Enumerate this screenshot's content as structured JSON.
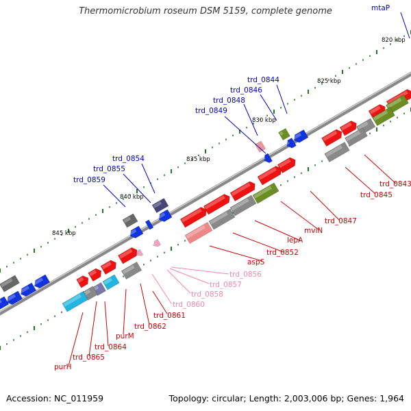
{
  "title": "Thermomicrobium roseum DSM 5159, complete genome",
  "footer": {
    "accession": "Accession: NC_011959",
    "summary": "Topology: circular; Length: 2,003,006 bp; Genes: 1,964"
  },
  "kbp_labels": [
    "820 kbp",
    "825 kbp",
    "830 kbp",
    "835 kbp",
    "840 kbp",
    "845 kbp"
  ],
  "gene_labels": {
    "blue": [
      "mtaP",
      "trd_0844",
      "trd_0846",
      "trd_0848",
      "trd_0849",
      "trd_0854",
      "trd_0855",
      "trd_0859"
    ],
    "red": [
      "trd_0843",
      "trd_0845",
      "trd_0847",
      "mviN",
      "lepA",
      "trd_0852",
      "aspS",
      "trd_0861",
      "trd_0862",
      "purM",
      "trd_0864",
      "trd_0865",
      "purH"
    ],
    "pink": [
      "trd_0856",
      "trd_0857",
      "trd_0858",
      "trd_0860"
    ]
  },
  "colors": {
    "axis": "#777777",
    "tick": "#1f7a1f",
    "gene_red": "#ee1111",
    "gene_blue": "#1133dd",
    "gene_olive": "#6b8e23",
    "gene_gray": "#888888",
    "gene_cyan": "#22b5e0",
    "label_blue": "#0000bb",
    "label_red": "#cc0000",
    "label_pink": "#ee88aa"
  }
}
